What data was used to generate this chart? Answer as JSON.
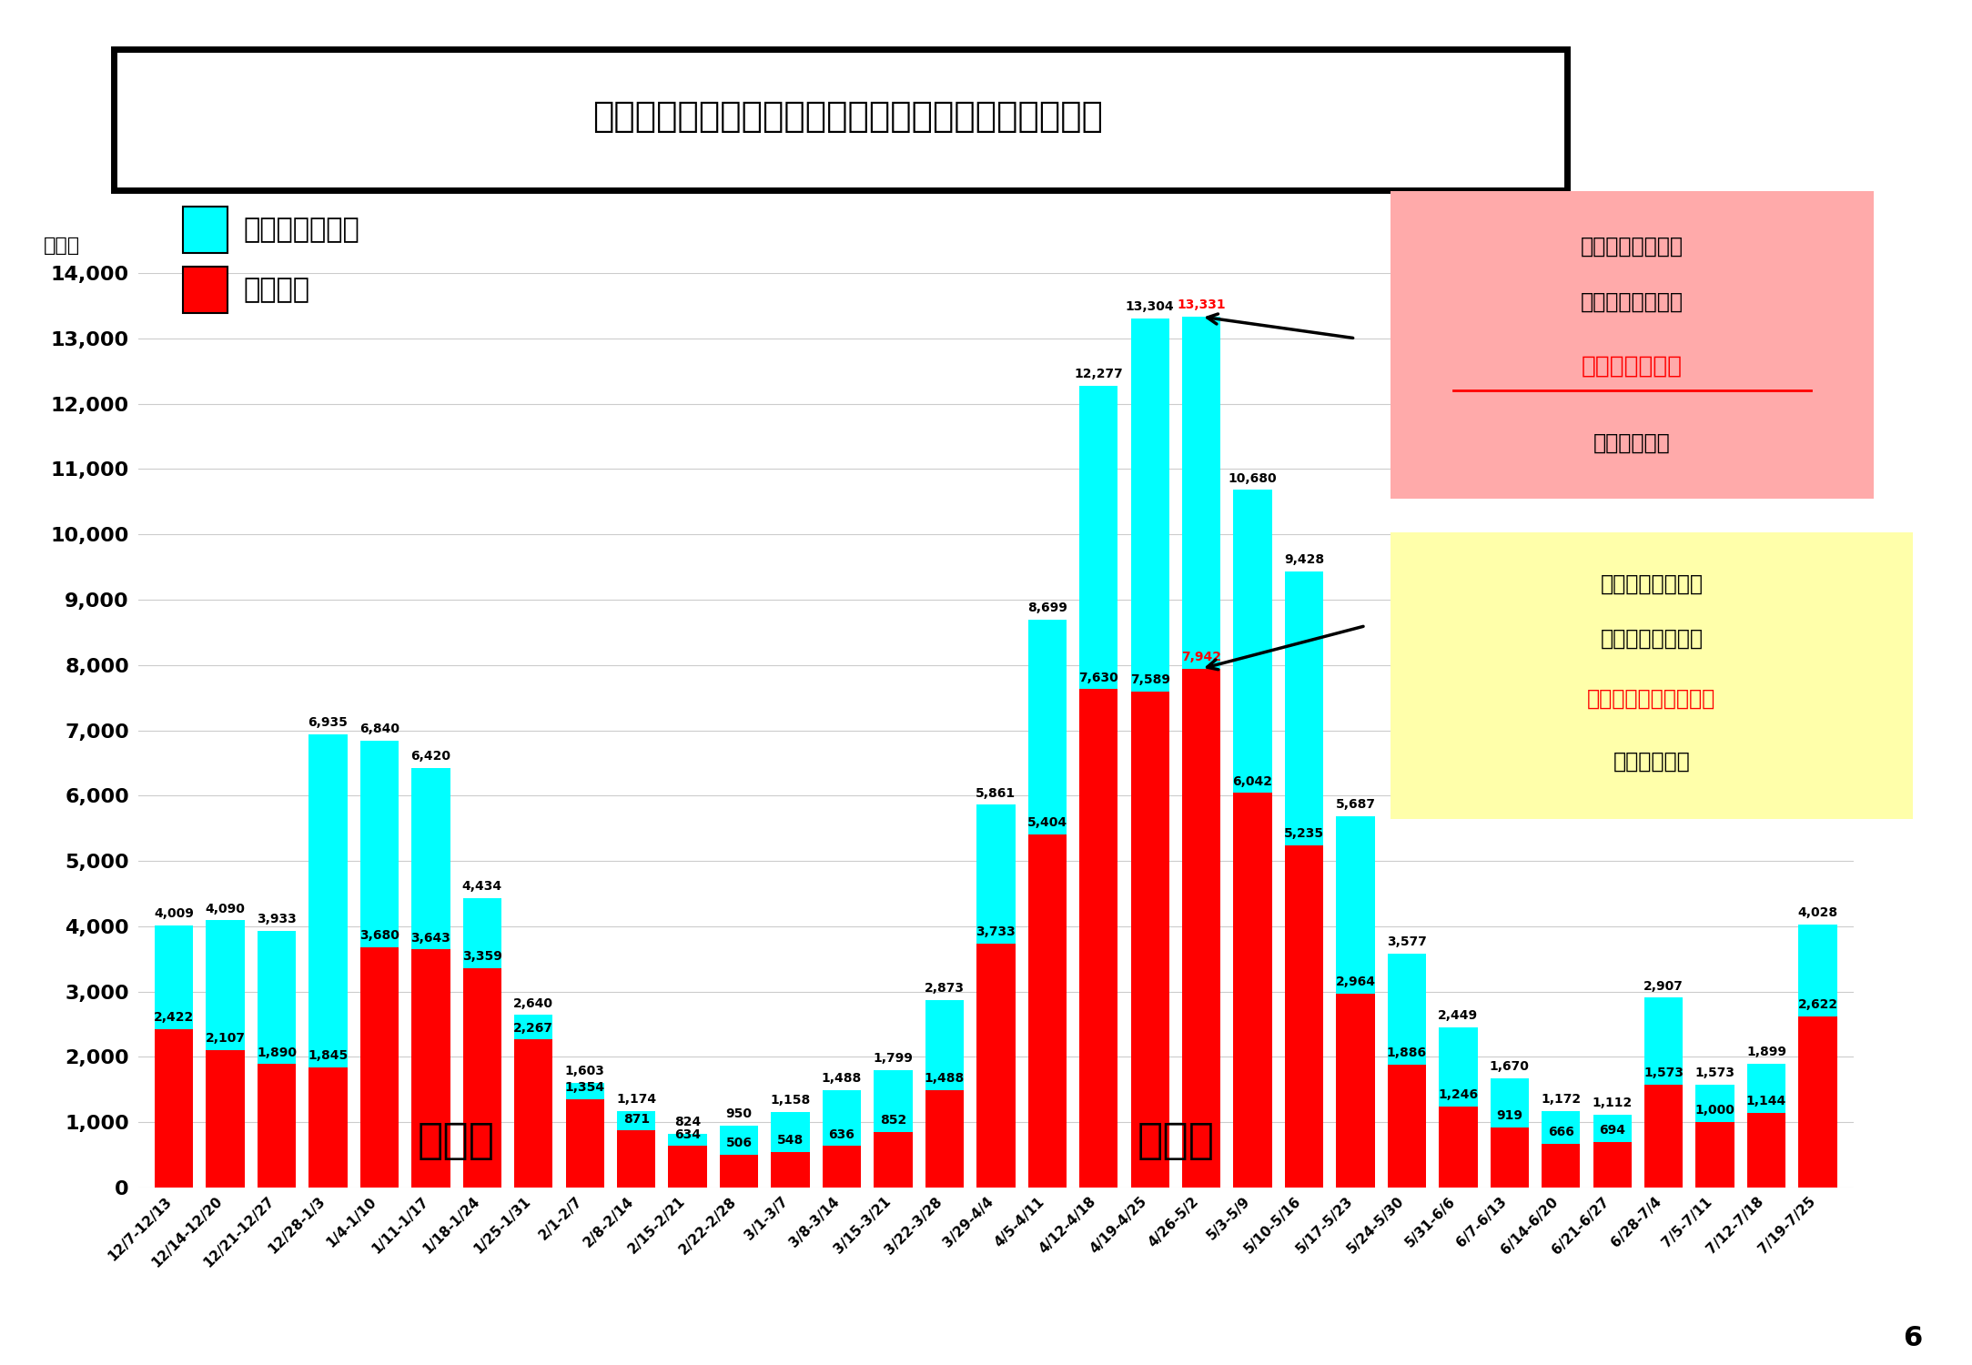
{
  "title": "関西２府４県における新規陽性者数の推移（週単位）",
  "ylabel": "（人）",
  "background_color": "#ffffff",
  "categories": [
    "12/7-12/13",
    "12/14-12/20",
    "12/21-12/27",
    "12/28-1/3",
    "1/4-1/10",
    "1/11-1/17",
    "1/18-1/24",
    "1/25-1/31",
    "2/1-2/7",
    "2/8-2/14",
    "2/15-2/21",
    "2/22-2/28",
    "3/1-3/7",
    "3/8-3/14",
    "3/15-3/21",
    "3/22-3/28",
    "3/29-4/4",
    "4/5-4/11",
    "4/12-4/18",
    "4/19-4/25",
    "4/26-5/2",
    "5/3-5/9",
    "5/10-5/16",
    "5/17-5/23",
    "5/24-5/30",
    "5/31-6/6",
    "6/7-6/13",
    "6/14-6/20",
    "6/21-6/27",
    "6/28-7/4",
    "7/5-7/11",
    "7/12-7/18",
    "7/19-7/25"
  ],
  "total_values": [
    4009,
    4090,
    3933,
    6935,
    6840,
    6420,
    4434,
    2640,
    1603,
    1174,
    824,
    950,
    1158,
    1488,
    1799,
    2873,
    5861,
    8699,
    12277,
    13304,
    13331,
    10680,
    9428,
    5687,
    3577,
    2449,
    1670,
    1172,
    1112,
    2907,
    1573,
    1899,
    4028
  ],
  "osaka_values": [
    2422,
    2107,
    1890,
    1845,
    3680,
    3643,
    3359,
    2267,
    1354,
    871,
    634,
    506,
    548,
    636,
    852,
    1488,
    3733,
    5404,
    7630,
    7589,
    7942,
    6042,
    5235,
    2964,
    1886,
    1246,
    919,
    666,
    694,
    1573,
    1000,
    1144,
    2622
  ],
  "total_color": "#00ffff",
  "osaka_color": "#ff0000",
  "ylim_max": 14000,
  "ytick_interval": 1000,
  "wave3_label": "第３波",
  "wave4_label": "第４波",
  "legend_total": "：２府４県合計",
  "legend_osaka": "：大阪府",
  "ann_total_line1": "４月２６日（月）",
  "ann_total_line2": "～５月２日（日）",
  "ann_total_line3": "１３，３３１人",
  "ann_total_line4": "（過去最多）",
  "ann_osaka_line1": "４月２６日（月）",
  "ann_osaka_line2": "～５月２日（日）",
  "ann_osaka_line3": "大阪府：７，９４２人",
  "ann_osaka_line4": "（過去最多）",
  "page_number": "6",
  "peak_total_idx": 20,
  "peak_total_val": 13331,
  "peak_osaka_idx": 20,
  "peak_osaka_val": 7942
}
